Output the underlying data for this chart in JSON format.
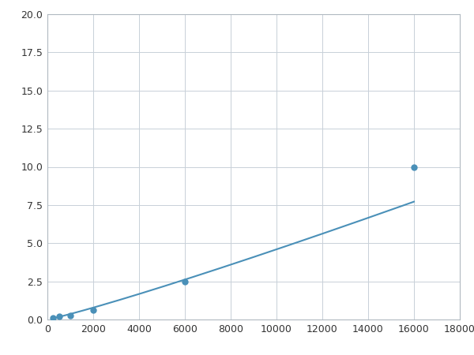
{
  "x": [
    250,
    500,
    1000,
    2000,
    6000,
    16000
  ],
  "y": [
    0.1,
    0.2,
    0.25,
    0.6,
    2.5,
    10.0
  ],
  "line_color": "#4a90b8",
  "marker_color": "#4a90b8",
  "marker_size": 5,
  "line_width": 1.5,
  "xlim": [
    0,
    18000
  ],
  "ylim": [
    0,
    20
  ],
  "xticks": [
    0,
    2000,
    4000,
    6000,
    8000,
    10000,
    12000,
    14000,
    16000,
    18000
  ],
  "yticks": [
    0.0,
    2.5,
    5.0,
    7.5,
    10.0,
    12.5,
    15.0,
    17.5,
    20.0
  ],
  "grid_color": "#c8d0d8",
  "background_color": "#ffffff",
  "figure_background": "#ffffff"
}
